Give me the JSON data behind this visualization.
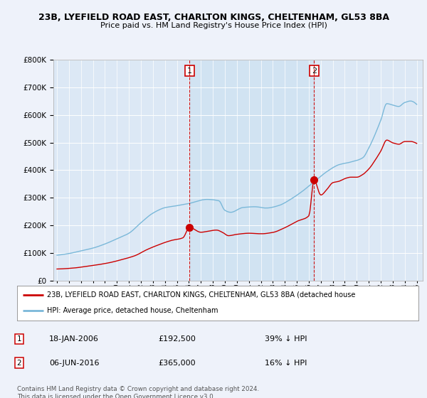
{
  "title": "23B, LYEFIELD ROAD EAST, CHARLTON KINGS, CHELTENHAM, GL53 8BA",
  "subtitle": "Price paid vs. HM Land Registry's House Price Index (HPI)",
  "hpi_label": "HPI: Average price, detached house, Cheltenham",
  "property_label": "23B, LYEFIELD ROAD EAST, CHARLTON KINGS, CHELTENHAM, GL53 8BA (detached house",
  "hpi_color": "#7ab8d9",
  "hpi_shade": "#c8dff0",
  "property_color": "#cc0000",
  "vline_color": "#cc0000",
  "transaction1": {
    "date": "18-JAN-2006",
    "price": 192500,
    "pct": "39%",
    "dir": "↓"
  },
  "transaction2": {
    "date": "06-JUN-2016",
    "price": 365000,
    "pct": "16%",
    "dir": "↓"
  },
  "vline1_x": 2006.05,
  "vline2_x": 2016.44,
  "marker1_y": 192500,
  "marker2_y": 365000,
  "ylim": [
    0,
    800000
  ],
  "xlim_start": 1994.7,
  "xlim_end": 2025.5,
  "background_color": "#eef2fa",
  "plot_bg": "#dce8f5",
  "footer": "Contains HM Land Registry data © Crown copyright and database right 2024.\nThis data is licensed under the Open Government Licence v3.0.",
  "xtick_start": 1995,
  "xtick_end": 2025
}
